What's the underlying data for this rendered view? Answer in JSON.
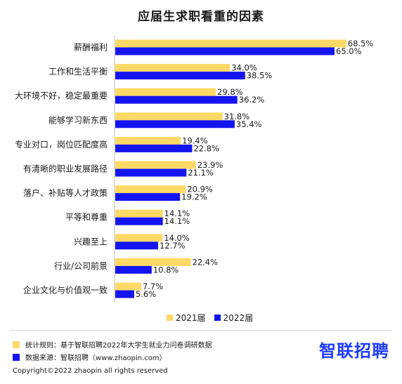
{
  "colors": {
    "series_2021": "#ffd966",
    "series_2022": "#1414f0",
    "brand": "#1f3cff"
  },
  "chart_data": {
    "type": "bar",
    "orientation": "horizontal",
    "title": "应届生求职看重的因素",
    "categories": [
      "薪酬福利",
      "工作和生活平衡",
      "大环境不好，稳定最重要",
      "能够学习新东西",
      "专业对口，岗位匹配度高",
      "有清晰的职业发展路径",
      "落户、补贴等人才政策",
      "平等和尊重",
      "兴趣至上",
      "行业/公司前景",
      "企业文化与价值观一致"
    ],
    "series": [
      {
        "name": "2021届",
        "values": [
          68.5,
          34.0,
          29.8,
          31.8,
          19.4,
          23.9,
          20.9,
          14.1,
          14.0,
          22.4,
          7.7
        ]
      },
      {
        "name": "2022届",
        "values": [
          65.0,
          38.5,
          36.2,
          35.4,
          22.8,
          21.1,
          19.2,
          14.1,
          12.7,
          10.8,
          5.6
        ]
      }
    ],
    "value_labels": [
      [
        "68.5%",
        "34.0%",
        "29.8%",
        "31.8%",
        "19.4%",
        "23.9%",
        "20.9%",
        "14.1%",
        "14.0%",
        "22.4%",
        "7.7%"
      ],
      [
        "65.0%",
        "38.5%",
        "36.2%",
        "35.4%",
        "22.8%",
        "21.1%",
        "19.2%",
        "14.1%",
        "12.7%",
        "10.8%",
        "5.6%"
      ]
    ],
    "legend_position": "bottom",
    "grid": false
  },
  "footer": {
    "note_stats": "统计规则：基于智联招聘2022年大学生就业力问卷调研数据",
    "note_source": "数据来源：智联招聘（www.zhaopin.com）",
    "brand": "智联招聘",
    "copyright": "Copyright©2022 zhaopin all rights reserved"
  }
}
